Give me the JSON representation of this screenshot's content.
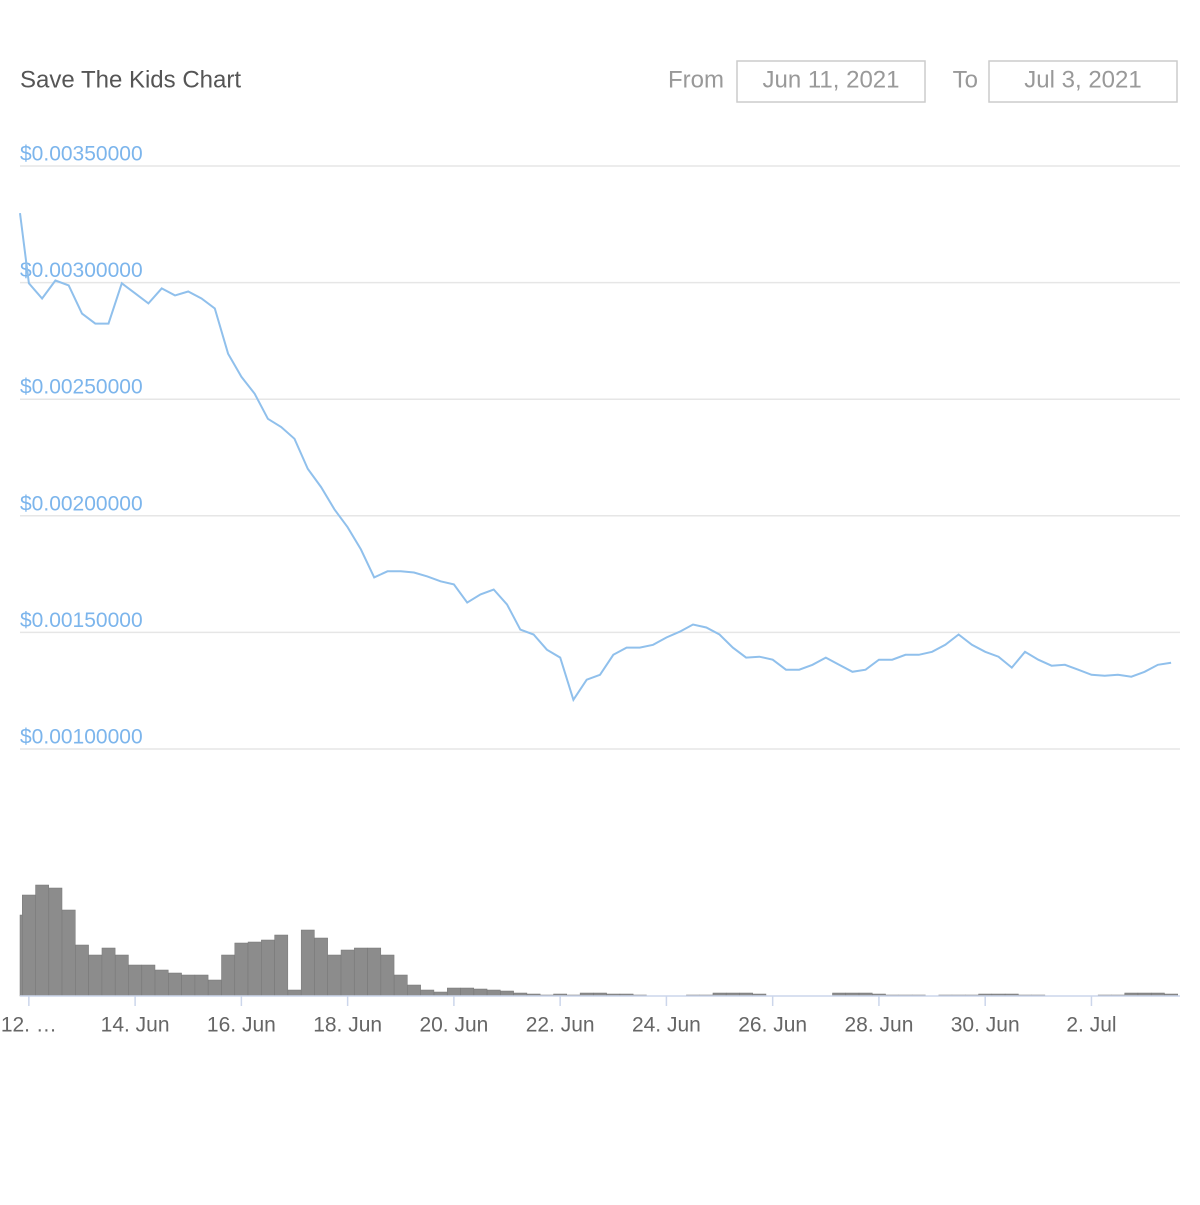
{
  "header": {
    "from_label": "From",
    "from_value": "Jun 11, 2021",
    "to_label": "To",
    "to_value": "Jul 3, 2021"
  },
  "chart_data": {
    "type": "line",
    "title": "Save The Kids Chart",
    "x": [
      "2021-06-11T20:00",
      "2021-06-12T00:00",
      "2021-06-12T06:00",
      "2021-06-12T12:00",
      "2021-06-12T18:00",
      "2021-06-13T00:00",
      "2021-06-13T06:00",
      "2021-06-13T12:00",
      "2021-06-13T18:00",
      "2021-06-14T00:00",
      "2021-06-14T06:00",
      "2021-06-14T12:00",
      "2021-06-14T18:00",
      "2021-06-15T00:00",
      "2021-06-15T06:00",
      "2021-06-15T12:00",
      "2021-06-15T18:00",
      "2021-06-16T00:00",
      "2021-06-16T06:00",
      "2021-06-16T12:00",
      "2021-06-16T18:00",
      "2021-06-17T00:00",
      "2021-06-17T06:00",
      "2021-06-17T12:00",
      "2021-06-17T18:00",
      "2021-06-18T00:00",
      "2021-06-18T06:00",
      "2021-06-18T12:00",
      "2021-06-18T18:00",
      "2021-06-19T00:00",
      "2021-06-19T06:00",
      "2021-06-19T12:00",
      "2021-06-19T18:00",
      "2021-06-20T00:00",
      "2021-06-20T06:00",
      "2021-06-20T12:00",
      "2021-06-20T18:00",
      "2021-06-21T00:00",
      "2021-06-21T06:00",
      "2021-06-21T12:00",
      "2021-06-21T18:00",
      "2021-06-22T00:00",
      "2021-06-22T06:00",
      "2021-06-22T12:00",
      "2021-06-22T18:00",
      "2021-06-23T00:00",
      "2021-06-23T06:00",
      "2021-06-23T12:00",
      "2021-06-23T18:00",
      "2021-06-24T00:00",
      "2021-06-24T06:00",
      "2021-06-24T12:00",
      "2021-06-24T18:00",
      "2021-06-25T00:00",
      "2021-06-25T06:00",
      "2021-06-25T12:00",
      "2021-06-25T18:00",
      "2021-06-26T00:00",
      "2021-06-26T06:00",
      "2021-06-26T12:00",
      "2021-06-26T18:00",
      "2021-06-27T00:00",
      "2021-06-27T06:00",
      "2021-06-27T12:00",
      "2021-06-27T18:00",
      "2021-06-28T00:00",
      "2021-06-28T06:00",
      "2021-06-28T12:00",
      "2021-06-28T18:00",
      "2021-06-29T00:00",
      "2021-06-29T06:00",
      "2021-06-29T12:00",
      "2021-06-29T18:00",
      "2021-06-30T00:00",
      "2021-06-30T06:00",
      "2021-06-30T12:00",
      "2021-06-30T18:00",
      "2021-07-01T00:00",
      "2021-07-01T06:00",
      "2021-07-01T12:00",
      "2021-07-01T18:00",
      "2021-07-02T00:00",
      "2021-07-02T06:00",
      "2021-07-02T12:00",
      "2021-07-02T18:00",
      "2021-07-03T00:00",
      "2021-07-03T06:00",
      "2021-07-03T12:00"
    ],
    "series": [
      {
        "color": "#90c0ec",
        "values": [
          0.003298,
          0.002997,
          0.002932,
          0.003009,
          0.002988,
          0.002867,
          0.002824,
          0.002824,
          0.002997,
          0.002954,
          0.002911,
          0.002975,
          0.002945,
          0.002962,
          0.002932,
          0.002889,
          0.002695,
          0.002596,
          0.002523,
          0.002416,
          0.002381,
          0.00233,
          0.002201,
          0.002123,
          0.002028,
          0.001951,
          0.001856,
          0.001736,
          0.001762,
          0.001762,
          0.001757,
          0.00174,
          0.001719,
          0.001706,
          0.001628,
          0.001663,
          0.001684,
          0.00162,
          0.001512,
          0.001491,
          0.001426,
          0.001392,
          0.001211,
          0.001297,
          0.001318,
          0.001404,
          0.001435,
          0.001435,
          0.001447,
          0.001478,
          0.001503,
          0.001534,
          0.001521,
          0.001491,
          0.001435,
          0.001392,
          0.001396,
          0.001383,
          0.00134,
          0.00134,
          0.001361,
          0.001392,
          0.001361,
          0.001331,
          0.00134,
          0.001383,
          0.001383,
          0.001404,
          0.001404,
          0.001417,
          0.001447,
          0.001491,
          0.001447,
          0.001417,
          0.001396,
          0.001349,
          0.001417,
          0.001383,
          0.001357,
          0.001361,
          0.00134,
          0.001318,
          0.001314,
          0.001318,
          0.00131,
          0.001331,
          0.001361,
          0.00137
        ]
      },
      {
        "type": "bar",
        "axis": "y2",
        "color": "#8c8c8c",
        "values": [
          81,
          101,
          111,
          108,
          86,
          51,
          41,
          48,
          41,
          31,
          31,
          26,
          23,
          21,
          21,
          16,
          41,
          53,
          54,
          56,
          61,
          6,
          66,
          58,
          41,
          46,
          48,
          48,
          41,
          21,
          11,
          6,
          4,
          8,
          8,
          7,
          6,
          5,
          3,
          2,
          1,
          2,
          1,
          3,
          3,
          2,
          2,
          1,
          0,
          0,
          0,
          1,
          1,
          3,
          3,
          3,
          2,
          0,
          0,
          0,
          0,
          0,
          3,
          3,
          3,
          2,
          1,
          1,
          1,
          0,
          1,
          1,
          1,
          2,
          2,
          2,
          1,
          1,
          0,
          0,
          0,
          0,
          1,
          1,
          3,
          3,
          3,
          2
        ]
      }
    ],
    "xlim": [
      "2021-06-11T20:00",
      "2021-07-03T16:00"
    ],
    "xticks": [
      {
        "value": "2021-06-12T00:00",
        "label": "12. …"
      },
      {
        "value": "2021-06-14T00:00",
        "label": "14. Jun"
      },
      {
        "value": "2021-06-16T00:00",
        "label": "16. Jun"
      },
      {
        "value": "2021-06-18T00:00",
        "label": "18. Jun"
      },
      {
        "value": "2021-06-20T00:00",
        "label": "20. Jun"
      },
      {
        "value": "2021-06-22T00:00",
        "label": "22. Jun"
      },
      {
        "value": "2021-06-24T00:00",
        "label": "24. Jun"
      },
      {
        "value": "2021-06-26T00:00",
        "label": "26. Jun"
      },
      {
        "value": "2021-06-28T00:00",
        "label": "28. Jun"
      },
      {
        "value": "2021-06-30T00:00",
        "label": "30. Jun"
      },
      {
        "value": "2021-07-02T00:00",
        "label": "2. Jul"
      }
    ],
    "ylim": [
      0.001,
      0.0035
    ],
    "yticks": [
      {
        "value": 0.001,
        "label": "$0.00100000"
      },
      {
        "value": 0.0015,
        "label": "$0.00150000"
      },
      {
        "value": 0.002,
        "label": "$0.00200000"
      },
      {
        "value": 0.0025,
        "label": "$0.00250000"
      },
      {
        "value": 0.003,
        "label": "$0.00300000"
      },
      {
        "value": 0.0035,
        "label": "$0.00350000"
      }
    ],
    "y2lim": [
      0,
      120
    ],
    "grid": true
  }
}
